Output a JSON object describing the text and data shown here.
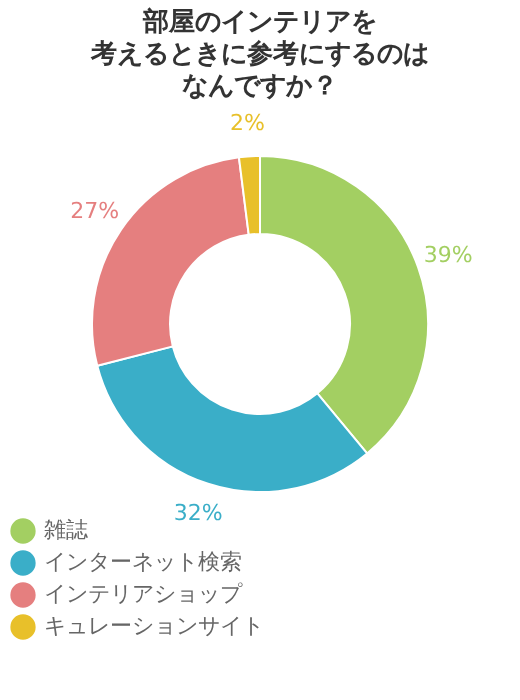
{
  "chart_data": {
    "type": "donut",
    "title": [
      "部屋のインテリアを",
      "考えるときに参考にするのは",
      "なんですか？"
    ],
    "categories": [
      "雑誌",
      "インターネット検索",
      "インテリアショップ",
      "キュレーションサイト"
    ],
    "values": [
      39,
      32,
      27,
      2
    ],
    "colors": [
      "#a3cf62",
      "#3aaec8",
      "#e57f7f",
      "#e8c02a"
    ],
    "value_labels": [
      "39%",
      "32%",
      "27%",
      "2%"
    ],
    "legend": "bottom"
  }
}
